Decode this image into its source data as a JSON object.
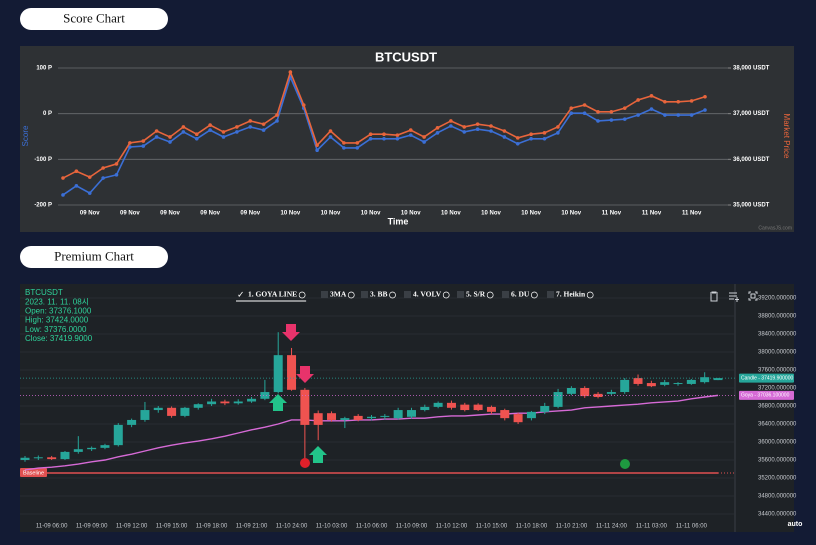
{
  "buttons": [
    "Score Chart",
    "Premium Chart"
  ],
  "chart_data": [
    {
      "type": "line",
      "title": "BTCUSDT",
      "x_label": "Time",
      "credit": "CanvasJS.com",
      "categories": [
        null,
        null,
        "09 Nov",
        null,
        null,
        "09 Nov",
        null,
        null,
        "09 Nov",
        null,
        null,
        "09 Nov",
        null,
        null,
        "09 Nov",
        null,
        null,
        "10 Nov",
        null,
        null,
        "10 Nov",
        null,
        null,
        "10 Nov",
        null,
        null,
        "10 Nov",
        null,
        null,
        "10 Nov",
        null,
        null,
        "10 Nov",
        null,
        null,
        "10 Nov",
        null,
        null,
        "10 Nov",
        null,
        null,
        "11 Nov",
        null,
        null,
        "11 Nov",
        null,
        null,
        "11 Nov",
        null
      ],
      "series": [
        {
          "name": "Score",
          "color": "#3b6fd6",
          "values": [
            -178,
            -158,
            -174,
            -141,
            -134,
            -73,
            -71,
            -51,
            -62,
            -40,
            -55,
            -36,
            -51,
            -40,
            -29,
            -36,
            -16,
            80,
            12,
            -80,
            -51,
            -75,
            -75,
            -55,
            -55,
            -55,
            -47,
            -62,
            -42,
            -27,
            -40,
            -34,
            -38,
            -51,
            -66,
            -55,
            -55,
            -42,
            1,
            1,
            -16,
            -14,
            -12,
            -3,
            10,
            -3,
            -3,
            -3,
            8
          ]
        },
        {
          "name": "Market Price",
          "color": "#e8653c",
          "axis": "y2",
          "values": [
            35590,
            35740,
            35610,
            35810,
            35900,
            36360,
            36400,
            36620,
            36490,
            36710,
            36550,
            36750,
            36600,
            36710,
            36840,
            36770,
            36970,
            37910,
            37190,
            36310,
            36620,
            36360,
            36360,
            36550,
            36550,
            36530,
            36640,
            36490,
            36690,
            36840,
            36710,
            36770,
            36730,
            36620,
            36470,
            36550,
            36580,
            36710,
            37120,
            37190,
            37040,
            37040,
            37120,
            37300,
            37390,
            37260,
            37260,
            37280,
            37370
          ]
        }
      ],
      "ylim": [
        -200,
        100
      ],
      "yticks": [
        {
          "value": 100,
          "label": "100 P"
        },
        {
          "value": 0,
          "label": "0 P"
        },
        {
          "value": -100,
          "label": "-100 P"
        },
        {
          "value": -200,
          "label": "-200 P"
        }
      ],
      "y2lim": [
        35000,
        38000
      ],
      "y2ticks": [
        {
          "value": 38000,
          "label": "38,000 USDT"
        },
        {
          "value": 37000,
          "label": "37,000 USDT"
        },
        {
          "value": 36000,
          "label": "36,000 USDT"
        },
        {
          "value": 35000,
          "label": "35,000 USDT"
        }
      ],
      "grid": true
    },
    {
      "type": "candlestick",
      "scale_mode": "auto",
      "info": [
        "BTCUSDT",
        "2023. 11. 11. 08시",
        "Open: 37376.1000",
        "High: 37424.0000",
        "Low: 37376.0000",
        "Close: 37419.9000"
      ],
      "indicators": [
        "1. GOYA LINE",
        "3MA",
        "3. BB",
        "4. VOLV",
        "5. S/R",
        "6. DU",
        "7. Heikin"
      ],
      "categories": [
        null,
        null,
        "11-09 06:00",
        null,
        null,
        "11-09 09:00",
        null,
        null,
        "11-09 12:00",
        null,
        null,
        "11-09 15:00",
        null,
        null,
        "11-09 18:00",
        null,
        null,
        "11-09 21:00",
        null,
        null,
        "11-10 24:00",
        null,
        null,
        "11-10 03:00",
        null,
        null,
        "11-10 06:00",
        null,
        null,
        "11-10 09:00",
        null,
        null,
        "11-10 12:00",
        null,
        null,
        "11-10 15:00",
        null,
        null,
        "11-10 18:00",
        null,
        null,
        "11-10 21:00",
        null,
        null,
        "11-11 24:00",
        null,
        null,
        "11-11 03:00",
        null,
        null,
        "11-11 06:00",
        null,
        null
      ],
      "candles": {
        "up_color": "#26a69a",
        "down_color": "#ef5350",
        "open": [
          35600,
          35650,
          35660,
          35620,
          35780,
          35840,
          35870,
          35930,
          36380,
          36490,
          36710,
          36760,
          36580,
          36760,
          36840,
          36900,
          36860,
          36900,
          36960,
          37110,
          37930,
          37160,
          36640,
          36640,
          36490,
          36580,
          36530,
          36560,
          36530,
          36560,
          36710,
          36780,
          36870,
          36830,
          36830,
          36780,
          36710,
          36620,
          36530,
          36670,
          36780,
          37070,
          37200,
          37070,
          37070,
          37110,
          37420,
          37310,
          37270,
          37290,
          37290,
          37330,
          37376.1
        ],
        "high": [
          35690,
          35700,
          35690,
          35800,
          36130,
          35900,
          35960,
          36420,
          36520,
          36890,
          36800,
          36790,
          36780,
          36860,
          36960,
          36940,
          36950,
          37000,
          37380,
          38440,
          38090,
          37200,
          36700,
          36680,
          36560,
          36620,
          36600,
          36620,
          36760,
          36760,
          36830,
          36900,
          36920,
          36870,
          36860,
          36810,
          36740,
          36650,
          36690,
          36870,
          37180,
          37240,
          37240,
          37110,
          37160,
          37420,
          37500,
          37360,
          37380,
          37330,
          37400,
          37550,
          37424
        ],
        "low": [
          35560,
          35600,
          35600,
          35600,
          35740,
          35800,
          35840,
          35900,
          36330,
          36450,
          36650,
          36540,
          36550,
          36720,
          36800,
          36820,
          36830,
          36870,
          36930,
          37080,
          37140,
          35560,
          36040,
          36450,
          36310,
          36460,
          36480,
          36500,
          36500,
          36520,
          36680,
          36750,
          36720,
          36680,
          36690,
          36620,
          36480,
          36400,
          36480,
          36620,
          36750,
          37040,
          36980,
          36970,
          37040,
          37070,
          37250,
          37220,
          37240,
          37250,
          37270,
          37300,
          37376
        ],
        "close": [
          35650,
          35660,
          35620,
          35780,
          35840,
          35870,
          35930,
          36380,
          36490,
          36710,
          36760,
          36580,
          36760,
          36840,
          36900,
          36860,
          36900,
          36960,
          37110,
          37930,
          37160,
          36380,
          36380,
          36490,
          36530,
          36490,
          36560,
          36580,
          36710,
          36710,
          36780,
          36870,
          36760,
          36710,
          36710,
          36670,
          36530,
          36440,
          36670,
          36800,
          37110,
          37200,
          37020,
          37000,
          37110,
          37380,
          37290,
          37240,
          37330,
          37310,
          37380,
          37440,
          37419.9
        ]
      },
      "goya": {
        "color": "#d66ad6",
        "values": [
          35380,
          35420,
          35440,
          35470,
          35510,
          35560,
          35600,
          35670,
          35730,
          35800,
          35870,
          35930,
          35980,
          36020,
          36070,
          36130,
          36200,
          36270,
          36330,
          36400,
          36490,
          36490,
          36470,
          36470,
          36470,
          36490,
          36490,
          36510,
          36510,
          36530,
          36530,
          36560,
          36580,
          36580,
          36600,
          36620,
          36620,
          36640,
          36640,
          36670,
          36690,
          36710,
          36760,
          36780,
          36800,
          36820,
          36840,
          36870,
          36890,
          36910,
          36960,
          37000,
          37036.1
        ]
      },
      "baseline": {
        "label": "Baseline",
        "value": 35310,
        "color": "#e05050"
      },
      "price_labels": [
        {
          "label": "Candle - 37419.900000",
          "value": 37419.9,
          "color": "#26a69a"
        },
        {
          "label": "Goya - 37036.100000",
          "value": 37036.1,
          "color": "#d66ad6"
        }
      ],
      "ylim": [
        34200,
        39400
      ],
      "yticks": [
        {
          "value": 34400,
          "label": "34400.000000"
        },
        {
          "value": 34800,
          "label": "34800.000000"
        },
        {
          "value": 35200,
          "label": "35200.000000"
        },
        {
          "value": 35600,
          "label": "35600.000000"
        },
        {
          "value": 36000,
          "label": "36000.000000"
        },
        {
          "value": 36400,
          "label": "36400.000000"
        },
        {
          "value": 36800,
          "label": "36800.000000"
        },
        {
          "value": 37200,
          "label": "37200.000000"
        },
        {
          "value": 37600,
          "label": "37600.000000"
        },
        {
          "value": 38000,
          "label": "38000.000000"
        },
        {
          "value": 38400,
          "label": "38400.000000"
        },
        {
          "value": 38800,
          "label": "38800.000000"
        },
        {
          "value": 39200,
          "label": "39200.000000"
        }
      ],
      "grid": true
    }
  ]
}
